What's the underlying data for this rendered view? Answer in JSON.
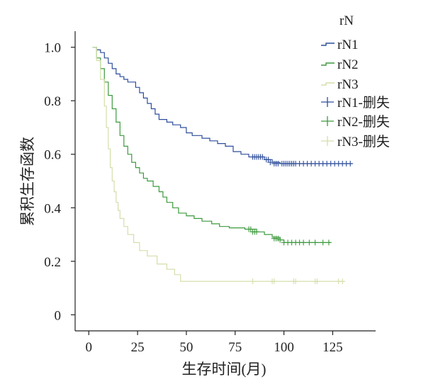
{
  "chart_data": {
    "type": "line",
    "subtype": "kaplan-meier",
    "xlabel": "生存时间(月)",
    "ylabel": "累积生存函数",
    "xlim": [
      -7,
      147
    ],
    "ylim": [
      -0.06,
      1.06
    ],
    "xticks": [
      0,
      25,
      50,
      75,
      100,
      125
    ],
    "yticks": [
      1.0,
      0.8,
      0.6,
      0.4,
      0.2,
      0
    ],
    "ytick_labels": [
      "1.0",
      "0.8",
      "0.6",
      "0.4",
      "0.2",
      "0"
    ],
    "grid": false,
    "legend": {
      "title": "rN",
      "position": "top-right",
      "entries": [
        "rN1",
        "rN2",
        "rN3",
        "rN1-删失",
        "rN2-删失",
        "rN3-删失"
      ]
    },
    "series": [
      {
        "name": "rN1",
        "color": "#2e4e9b",
        "steps": [
          [
            2,
            1.0
          ],
          [
            4,
            0.99
          ],
          [
            6,
            0.98
          ],
          [
            8,
            0.96
          ],
          [
            10,
            0.94
          ],
          [
            12,
            0.92
          ],
          [
            14,
            0.9
          ],
          [
            16,
            0.89
          ],
          [
            18,
            0.88
          ],
          [
            20,
            0.87
          ],
          [
            24,
            0.85
          ],
          [
            26,
            0.83
          ],
          [
            28,
            0.81
          ],
          [
            30,
            0.79
          ],
          [
            32,
            0.77
          ],
          [
            34,
            0.75
          ],
          [
            36,
            0.73
          ],
          [
            40,
            0.72
          ],
          [
            43,
            0.71
          ],
          [
            47,
            0.7
          ],
          [
            50,
            0.68
          ],
          [
            53,
            0.67
          ],
          [
            58,
            0.66
          ],
          [
            62,
            0.65
          ],
          [
            66,
            0.64
          ],
          [
            70,
            0.63
          ],
          [
            74,
            0.61
          ],
          [
            78,
            0.6
          ],
          [
            82,
            0.59
          ],
          [
            90,
            0.58
          ],
          [
            94,
            0.57
          ],
          [
            98,
            0.565
          ],
          [
            135,
            0.565
          ]
        ],
        "censored": [
          [
            84,
            0.59
          ],
          [
            85,
            0.59
          ],
          [
            86,
            0.59
          ],
          [
            87,
            0.59
          ],
          [
            88,
            0.59
          ],
          [
            89,
            0.59
          ],
          [
            91,
            0.58
          ],
          [
            92,
            0.58
          ],
          [
            93,
            0.57
          ],
          [
            95,
            0.565
          ],
          [
            96,
            0.565
          ],
          [
            97,
            0.565
          ],
          [
            99,
            0.565
          ],
          [
            100,
            0.565
          ],
          [
            101,
            0.565
          ],
          [
            102,
            0.565
          ],
          [
            103,
            0.565
          ],
          [
            104,
            0.565
          ],
          [
            105,
            0.565
          ],
          [
            106,
            0.565
          ],
          [
            108,
            0.565
          ],
          [
            110,
            0.565
          ],
          [
            112,
            0.565
          ],
          [
            114,
            0.565
          ],
          [
            116,
            0.565
          ],
          [
            118,
            0.565
          ],
          [
            120,
            0.565
          ],
          [
            122,
            0.565
          ],
          [
            124,
            0.565
          ],
          [
            126,
            0.565
          ],
          [
            128,
            0.565
          ],
          [
            130,
            0.565
          ],
          [
            132,
            0.565
          ],
          [
            134,
            0.565
          ]
        ]
      },
      {
        "name": "rN2",
        "color": "#3e9a3e",
        "steps": [
          [
            2,
            1.0
          ],
          [
            4,
            0.96
          ],
          [
            6,
            0.92
          ],
          [
            8,
            0.87
          ],
          [
            10,
            0.82
          ],
          [
            12,
            0.77
          ],
          [
            14,
            0.72
          ],
          [
            16,
            0.67
          ],
          [
            18,
            0.63
          ],
          [
            20,
            0.6
          ],
          [
            22,
            0.57
          ],
          [
            24,
            0.55
          ],
          [
            26,
            0.53
          ],
          [
            28,
            0.51
          ],
          [
            30,
            0.5
          ],
          [
            33,
            0.48
          ],
          [
            36,
            0.46
          ],
          [
            38,
            0.44
          ],
          [
            40,
            0.42
          ],
          [
            43,
            0.4
          ],
          [
            46,
            0.38
          ],
          [
            50,
            0.37
          ],
          [
            54,
            0.36
          ],
          [
            58,
            0.35
          ],
          [
            63,
            0.34
          ],
          [
            67,
            0.33
          ],
          [
            72,
            0.325
          ],
          [
            80,
            0.32
          ],
          [
            86,
            0.31
          ],
          [
            90,
            0.3
          ],
          [
            94,
            0.29
          ],
          [
            98,
            0.28
          ],
          [
            100,
            0.27
          ],
          [
            124,
            0.27
          ]
        ],
        "censored": [
          [
            82,
            0.32
          ],
          [
            83,
            0.32
          ],
          [
            84,
            0.31
          ],
          [
            85,
            0.31
          ],
          [
            86,
            0.31
          ],
          [
            95,
            0.285
          ],
          [
            96,
            0.285
          ],
          [
            97,
            0.285
          ],
          [
            98,
            0.28
          ],
          [
            100,
            0.27
          ],
          [
            102,
            0.27
          ],
          [
            104,
            0.27
          ],
          [
            106,
            0.27
          ],
          [
            108,
            0.27
          ],
          [
            110,
            0.27
          ],
          [
            113,
            0.27
          ],
          [
            116,
            0.27
          ],
          [
            120,
            0.27
          ],
          [
            123,
            0.27
          ]
        ]
      },
      {
        "name": "rN3",
        "color": "#d4dfab",
        "steps": [
          [
            2,
            1.0
          ],
          [
            4,
            0.95
          ],
          [
            6,
            0.88
          ],
          [
            8,
            0.78
          ],
          [
            9,
            0.7
          ],
          [
            10,
            0.62
          ],
          [
            11,
            0.55
          ],
          [
            12,
            0.5
          ],
          [
            13,
            0.46
          ],
          [
            14,
            0.42
          ],
          [
            15,
            0.39
          ],
          [
            16,
            0.36
          ],
          [
            18,
            0.33
          ],
          [
            20,
            0.3
          ],
          [
            23,
            0.27
          ],
          [
            26,
            0.24
          ],
          [
            30,
            0.22
          ],
          [
            35,
            0.19
          ],
          [
            40,
            0.17
          ],
          [
            44,
            0.15
          ],
          [
            47,
            0.125
          ],
          [
            131,
            0.125
          ]
        ],
        "censored": [
          [
            84,
            0.125
          ],
          [
            94,
            0.125
          ],
          [
            95,
            0.125
          ],
          [
            105,
            0.125
          ],
          [
            106,
            0.125
          ],
          [
            116,
            0.125
          ],
          [
            117,
            0.125
          ],
          [
            128,
            0.125
          ],
          [
            130,
            0.125
          ]
        ]
      }
    ]
  }
}
